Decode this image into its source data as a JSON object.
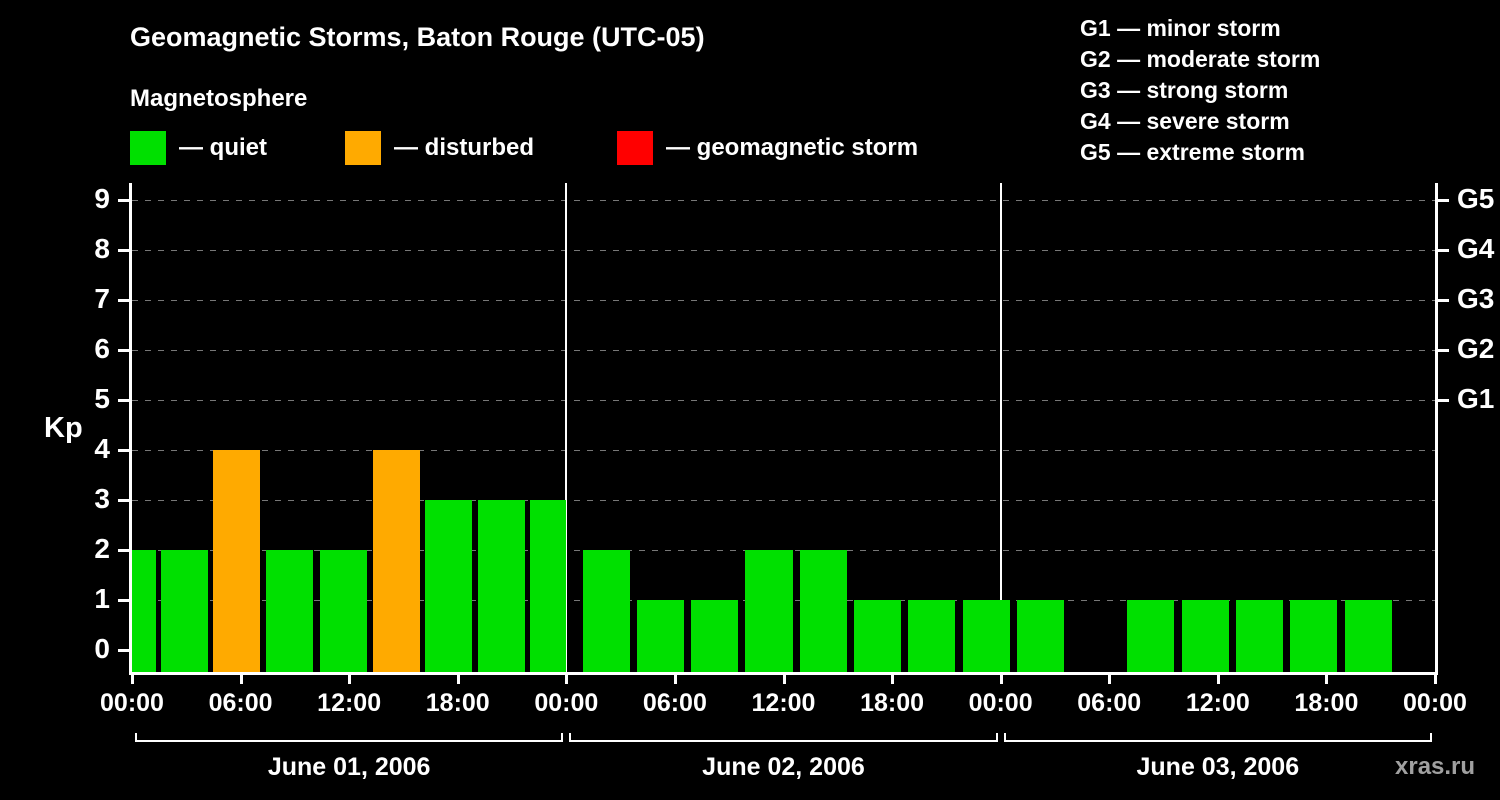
{
  "header": {
    "title": "Geomagnetic Storms, Baton Rouge (UTC-05)",
    "subtitle": "Magnetosphere"
  },
  "legend": {
    "items": [
      {
        "label": "— quiet",
        "color": "#00e000",
        "icon": "quiet-swatch-icon"
      },
      {
        "label": "— disturbed",
        "color": "#ffaa00",
        "icon": "disturbed-swatch-icon"
      },
      {
        "label": "— geomagnetic storm",
        "color": "#ff0000",
        "icon": "storm-swatch-icon"
      }
    ]
  },
  "g_scale_legend": [
    "G1 — minor storm",
    "G2 — moderate storm",
    "G3 — strong storm",
    "G4 — severe storm",
    "G5 — extreme storm"
  ],
  "watermark": "xras.ru",
  "chart_data": {
    "type": "bar",
    "title": "Geomagnetic Storms, Baton Rouge (UTC-05)",
    "ylabel": "Kp",
    "ylim": [
      0,
      9
    ],
    "total_hours": 72,
    "grid": true,
    "y_ticks": [
      0,
      1,
      2,
      3,
      4,
      5,
      6,
      7,
      8,
      9
    ],
    "g_labels": [
      {
        "kp": 5,
        "label": "G1"
      },
      {
        "kp": 6,
        "label": "G2"
      },
      {
        "kp": 7,
        "label": "G3"
      },
      {
        "kp": 8,
        "label": "G4"
      },
      {
        "kp": 9,
        "label": "G5"
      }
    ],
    "x_tick_labels": [
      "00:00",
      "06:00",
      "12:00",
      "18:00",
      "00:00",
      "06:00",
      "12:00",
      "18:00",
      "00:00",
      "06:00",
      "12:00",
      "18:00",
      "00:00"
    ],
    "day_boundaries_h": [
      24,
      48
    ],
    "days": [
      {
        "label": "June 01, 2006",
        "kp_values": [
          2,
          2,
          4,
          2,
          2,
          4,
          3,
          3,
          3
        ]
      },
      {
        "label": "June 02, 2006",
        "kp_values": [
          2,
          1,
          1,
          2,
          2,
          1,
          1,
          1
        ]
      },
      {
        "label": "June 03, 2006",
        "kp_values": [
          1,
          0,
          1,
          1,
          1,
          1,
          1
        ]
      }
    ],
    "status_colors": {
      "quiet": "#00e000",
      "disturbed": "#ffaa00",
      "storm": "#ff0000"
    },
    "grid_color": "#787878",
    "axis_color": "#ffffff",
    "background_color": "#000000",
    "watermark_color": "#a0a0a0",
    "bars": [
      {
        "start_h": 0.0,
        "dur_h": 1.3,
        "kp": 2,
        "status": "quiet"
      },
      {
        "start_h": 1.6,
        "dur_h": 2.6,
        "kp": 2,
        "status": "quiet"
      },
      {
        "start_h": 4.5,
        "dur_h": 2.6,
        "kp": 4,
        "status": "disturbed"
      },
      {
        "start_h": 7.4,
        "dur_h": 2.6,
        "kp": 2,
        "status": "quiet"
      },
      {
        "start_h": 10.4,
        "dur_h": 2.6,
        "kp": 2,
        "status": "quiet"
      },
      {
        "start_h": 13.3,
        "dur_h": 2.6,
        "kp": 4,
        "status": "disturbed"
      },
      {
        "start_h": 16.2,
        "dur_h": 2.6,
        "kp": 3,
        "status": "quiet"
      },
      {
        "start_h": 19.1,
        "dur_h": 2.6,
        "kp": 3,
        "status": "quiet"
      },
      {
        "start_h": 22.0,
        "dur_h": 2.0,
        "kp": 3,
        "status": "quiet"
      },
      {
        "start_h": 24.9,
        "dur_h": 2.6,
        "kp": 2,
        "status": "quiet"
      },
      {
        "start_h": 27.9,
        "dur_h": 2.6,
        "kp": 1,
        "status": "quiet"
      },
      {
        "start_h": 30.9,
        "dur_h": 2.6,
        "kp": 1,
        "status": "quiet"
      },
      {
        "start_h": 33.9,
        "dur_h": 2.6,
        "kp": 2,
        "status": "quiet"
      },
      {
        "start_h": 36.9,
        "dur_h": 2.6,
        "kp": 2,
        "status": "quiet"
      },
      {
        "start_h": 39.9,
        "dur_h": 2.6,
        "kp": 1,
        "status": "quiet"
      },
      {
        "start_h": 42.9,
        "dur_h": 2.6,
        "kp": 1,
        "status": "quiet"
      },
      {
        "start_h": 45.9,
        "dur_h": 2.6,
        "kp": 1,
        "status": "quiet"
      },
      {
        "start_h": 48.9,
        "dur_h": 2.6,
        "kp": 1,
        "status": "quiet"
      },
      {
        "start_h": 55.0,
        "dur_h": 2.6,
        "kp": 1,
        "status": "quiet"
      },
      {
        "start_h": 58.0,
        "dur_h": 2.6,
        "kp": 1,
        "status": "quiet"
      },
      {
        "start_h": 61.0,
        "dur_h": 2.6,
        "kp": 1,
        "status": "quiet"
      },
      {
        "start_h": 64.0,
        "dur_h": 2.6,
        "kp": 1,
        "status": "quiet"
      },
      {
        "start_h": 67.0,
        "dur_h": 2.6,
        "kp": 1,
        "status": "quiet"
      }
    ]
  }
}
